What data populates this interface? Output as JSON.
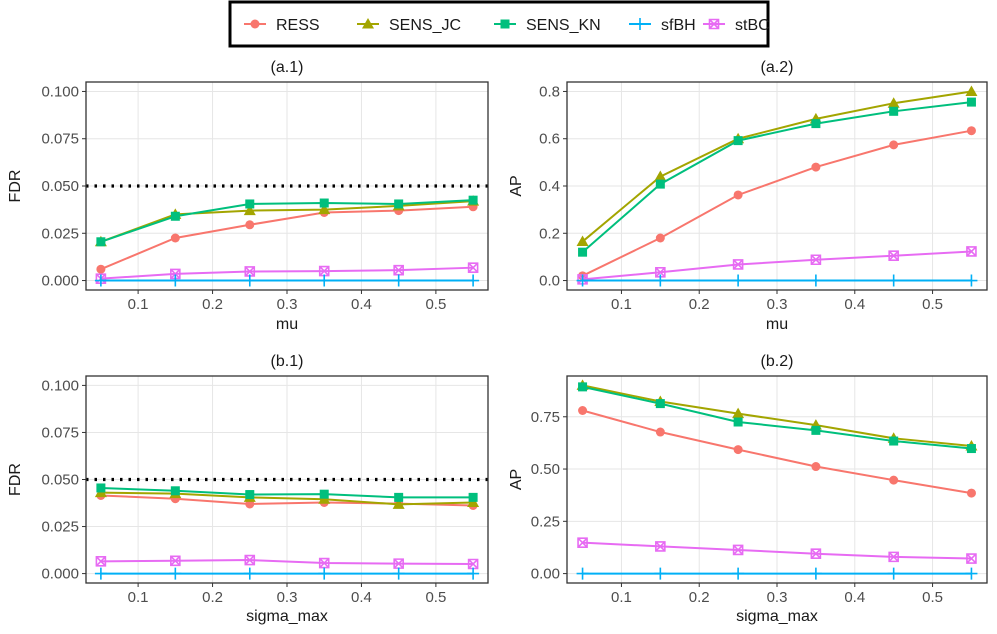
{
  "legend": {
    "items": [
      {
        "name": "RESS",
        "color": "#F8766D",
        "marker": "circle"
      },
      {
        "name": "SENS_JC",
        "color": "#A3A500",
        "marker": "triangle"
      },
      {
        "name": "SENS_KN",
        "color": "#00BF7D",
        "marker": "square"
      },
      {
        "name": "sfBH",
        "color": "#00B0F6",
        "marker": "plus"
      },
      {
        "name": "stBC",
        "color": "#E76BF3",
        "marker": "boxx"
      }
    ]
  },
  "chart_data": [
    {
      "type": "line",
      "title": "(a.1)",
      "xlabel": "mu",
      "ylabel": "FDR",
      "x": [
        0.05,
        0.15,
        0.25,
        0.35,
        0.45,
        0.55
      ],
      "xlim": [
        0.03,
        0.57
      ],
      "ylim": [
        -0.005,
        0.105
      ],
      "xticks": [
        {
          "v": 0.1,
          "label": "0.1"
        },
        {
          "v": 0.2,
          "label": "0.2"
        },
        {
          "v": 0.3,
          "label": "0.3"
        },
        {
          "v": 0.4,
          "label": "0.4"
        },
        {
          "v": 0.5,
          "label": "0.5"
        }
      ],
      "yticks": [
        {
          "v": 0.0,
          "label": "0.000"
        },
        {
          "v": 0.025,
          "label": "0.025"
        },
        {
          "v": 0.05,
          "label": "0.050"
        },
        {
          "v": 0.075,
          "label": "0.075"
        },
        {
          "v": 0.1,
          "label": "0.100"
        }
      ],
      "hline": 0.05,
      "series": [
        {
          "name": "RESS",
          "values": [
            0.006,
            0.0225,
            0.0295,
            0.036,
            0.037,
            0.039
          ]
        },
        {
          "name": "SENS_JC",
          "values": [
            0.0205,
            0.035,
            0.037,
            0.0375,
            0.0395,
            0.042
          ]
        },
        {
          "name": "SENS_KN",
          "values": [
            0.0205,
            0.034,
            0.0405,
            0.041,
            0.0405,
            0.0425
          ]
        },
        {
          "name": "sfBH",
          "values": [
            0.0,
            0.0,
            0.0,
            0.0,
            0.0,
            0.0
          ]
        },
        {
          "name": "stBC",
          "values": [
            0.001,
            0.0035,
            0.0048,
            0.005,
            0.0055,
            0.0068
          ]
        }
      ]
    },
    {
      "type": "line",
      "title": "(a.2)",
      "xlabel": "mu",
      "ylabel": "AP",
      "x": [
        0.05,
        0.15,
        0.25,
        0.35,
        0.45,
        0.55
      ],
      "xlim": [
        0.03,
        0.57
      ],
      "ylim": [
        -0.04,
        0.84
      ],
      "xticks": [
        {
          "v": 0.1,
          "label": "0.1"
        },
        {
          "v": 0.2,
          "label": "0.2"
        },
        {
          "v": 0.3,
          "label": "0.3"
        },
        {
          "v": 0.4,
          "label": "0.4"
        },
        {
          "v": 0.5,
          "label": "0.5"
        }
      ],
      "yticks": [
        {
          "v": 0.0,
          "label": "0.0"
        },
        {
          "v": 0.2,
          "label": "0.2"
        },
        {
          "v": 0.4,
          "label": "0.4"
        },
        {
          "v": 0.6,
          "label": "0.6"
        },
        {
          "v": 0.8,
          "label": "0.8"
        }
      ],
      "hline": null,
      "series": [
        {
          "name": "RESS",
          "values": [
            0.02,
            0.18,
            0.362,
            0.48,
            0.574,
            0.634
          ]
        },
        {
          "name": "SENS_JC",
          "values": [
            0.165,
            0.44,
            0.6,
            0.684,
            0.75,
            0.8
          ]
        },
        {
          "name": "SENS_KN",
          "values": [
            0.12,
            0.408,
            0.592,
            0.664,
            0.716,
            0.755
          ]
        },
        {
          "name": "sfBH",
          "values": [
            0.0,
            0.0,
            0.0,
            0.0,
            0.0,
            0.0
          ]
        },
        {
          "name": "stBC",
          "values": [
            0.005,
            0.035,
            0.068,
            0.088,
            0.105,
            0.123
          ]
        }
      ]
    },
    {
      "type": "line",
      "title": "(b.1)",
      "xlabel": "sigma_max",
      "ylabel": "FDR",
      "x": [
        0.05,
        0.15,
        0.25,
        0.35,
        0.45,
        0.55
      ],
      "xlim": [
        0.03,
        0.57
      ],
      "ylim": [
        -0.005,
        0.105
      ],
      "xticks": [
        {
          "v": 0.1,
          "label": "0.1"
        },
        {
          "v": 0.2,
          "label": "0.2"
        },
        {
          "v": 0.3,
          "label": "0.3"
        },
        {
          "v": 0.4,
          "label": "0.4"
        },
        {
          "v": 0.5,
          "label": "0.5"
        }
      ],
      "yticks": [
        {
          "v": 0.0,
          "label": "0.000"
        },
        {
          "v": 0.025,
          "label": "0.025"
        },
        {
          "v": 0.05,
          "label": "0.050"
        },
        {
          "v": 0.075,
          "label": "0.075"
        },
        {
          "v": 0.1,
          "label": "0.100"
        }
      ],
      "hline": 0.05,
      "series": [
        {
          "name": "RESS",
          "values": [
            0.0415,
            0.0398,
            0.037,
            0.0378,
            0.0372,
            0.0362
          ]
        },
        {
          "name": "SENS_JC",
          "values": [
            0.043,
            0.0425,
            0.0405,
            0.0395,
            0.0368,
            0.0378
          ]
        },
        {
          "name": "SENS_KN",
          "values": [
            0.0455,
            0.044,
            0.042,
            0.0422,
            0.0405,
            0.0405
          ]
        },
        {
          "name": "sfBH",
          "values": [
            0.0,
            0.0,
            0.0,
            0.0,
            0.0,
            0.0
          ]
        },
        {
          "name": "stBC",
          "values": [
            0.0065,
            0.0068,
            0.0072,
            0.0056,
            0.0053,
            0.0051
          ]
        }
      ]
    },
    {
      "type": "line",
      "title": "(b.2)",
      "xlabel": "sigma_max",
      "ylabel": "AP",
      "x": [
        0.05,
        0.15,
        0.25,
        0.35,
        0.45,
        0.55
      ],
      "xlim": [
        0.03,
        0.57
      ],
      "ylim": [
        -0.045,
        0.945
      ],
      "xticks": [
        {
          "v": 0.1,
          "label": "0.1"
        },
        {
          "v": 0.2,
          "label": "0.2"
        },
        {
          "v": 0.3,
          "label": "0.3"
        },
        {
          "v": 0.4,
          "label": "0.4"
        },
        {
          "v": 0.5,
          "label": "0.5"
        }
      ],
      "yticks": [
        {
          "v": 0.0,
          "label": "0.00"
        },
        {
          "v": 0.25,
          "label": "0.25"
        },
        {
          "v": 0.5,
          "label": "0.50"
        },
        {
          "v": 0.75,
          "label": "0.75"
        }
      ],
      "hline": null,
      "series": [
        {
          "name": "RESS",
          "values": [
            0.78,
            0.677,
            0.593,
            0.512,
            0.447,
            0.385
          ]
        },
        {
          "name": "SENS_JC",
          "values": [
            0.9,
            0.823,
            0.765,
            0.71,
            0.647,
            0.61
          ]
        },
        {
          "name": "SENS_KN",
          "values": [
            0.893,
            0.813,
            0.725,
            0.685,
            0.634,
            0.598
          ]
        },
        {
          "name": "sfBH",
          "values": [
            0.0,
            0.0,
            0.0,
            0.0,
            0.0,
            0.0
          ]
        },
        {
          "name": "stBC",
          "values": [
            0.148,
            0.13,
            0.113,
            0.095,
            0.08,
            0.072
          ]
        }
      ]
    }
  ]
}
